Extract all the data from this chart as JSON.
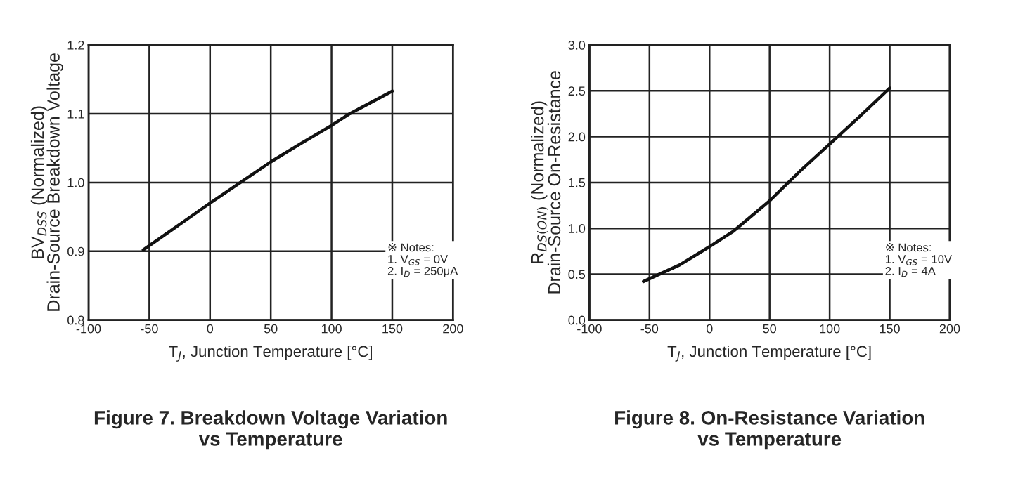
{
  "chart_data": [
    {
      "type": "line",
      "title": "Figure 7. Breakdown Voltage Variation\nvs Temperature",
      "xlabel": "T$_{J}$, Junction Temperature [°C]",
      "ylabel": "BV$_{DSS}$ (Normalized)\nDrain-Source Breakdown Voltage",
      "x": [
        -55,
        0,
        25,
        50,
        75,
        100,
        115,
        150
      ],
      "series": [
        {
          "color": "#111111",
          "values": [
            0.902,
            0.97,
            1.0,
            1.03,
            1.057,
            1.083,
            1.1,
            1.133
          ]
        }
      ],
      "xlim": [
        -100,
        200
      ],
      "xticks": [
        -100,
        -50,
        0,
        50,
        100,
        150,
        200
      ],
      "ylim": [
        0.8,
        1.2
      ],
      "yticks": [
        {
          "value": 0.8,
          "label": "0.8"
        },
        {
          "value": 0.9,
          "label": "0.9"
        },
        {
          "value": 1.0,
          "label": "1.0"
        },
        {
          "value": 1.1,
          "label": "1.1"
        },
        {
          "value": 1.2,
          "label": "1.2"
        }
      ],
      "grid": true,
      "annotations": [
        "※ Notes:\n1. V$_{GS}$ = 0V\n2. I$_{D}$ = 250μA"
      ]
    },
    {
      "type": "line",
      "title": "Figure 8. On-Resistance Variation\nvs Temperature",
      "xlabel": "T$_{J}$, Junction Temperature [°C]",
      "ylabel": "R$_{DS(ON)}$ (Normalized)\nDrain-Source On-Resistance",
      "x": [
        -55,
        -25,
        0,
        20,
        50,
        75,
        100,
        125,
        150
      ],
      "series": [
        {
          "color": "#111111",
          "values": [
            0.42,
            0.6,
            0.8,
            0.97,
            1.3,
            1.62,
            1.92,
            2.22,
            2.53
          ]
        }
      ],
      "xlim": [
        -100,
        200
      ],
      "xticks": [
        -100,
        -50,
        0,
        50,
        100,
        150,
        200
      ],
      "ylim": [
        0.0,
        3.0
      ],
      "yticks": [
        {
          "value": 0.0,
          "label": "0.0"
        },
        {
          "value": 0.5,
          "label": "0.5"
        },
        {
          "value": 1.0,
          "label": "1.0"
        },
        {
          "value": 1.5,
          "label": "1.5"
        },
        {
          "value": 2.0,
          "label": "2.0"
        },
        {
          "value": 2.5,
          "label": "2.5"
        },
        {
          "value": 3.0,
          "label": "3.0"
        }
      ],
      "grid": true,
      "annotations": [
        "※ Notes:\n1. V$_{GS}$ = 10V\n2. I$_{D}$ = 4A"
      ]
    }
  ]
}
